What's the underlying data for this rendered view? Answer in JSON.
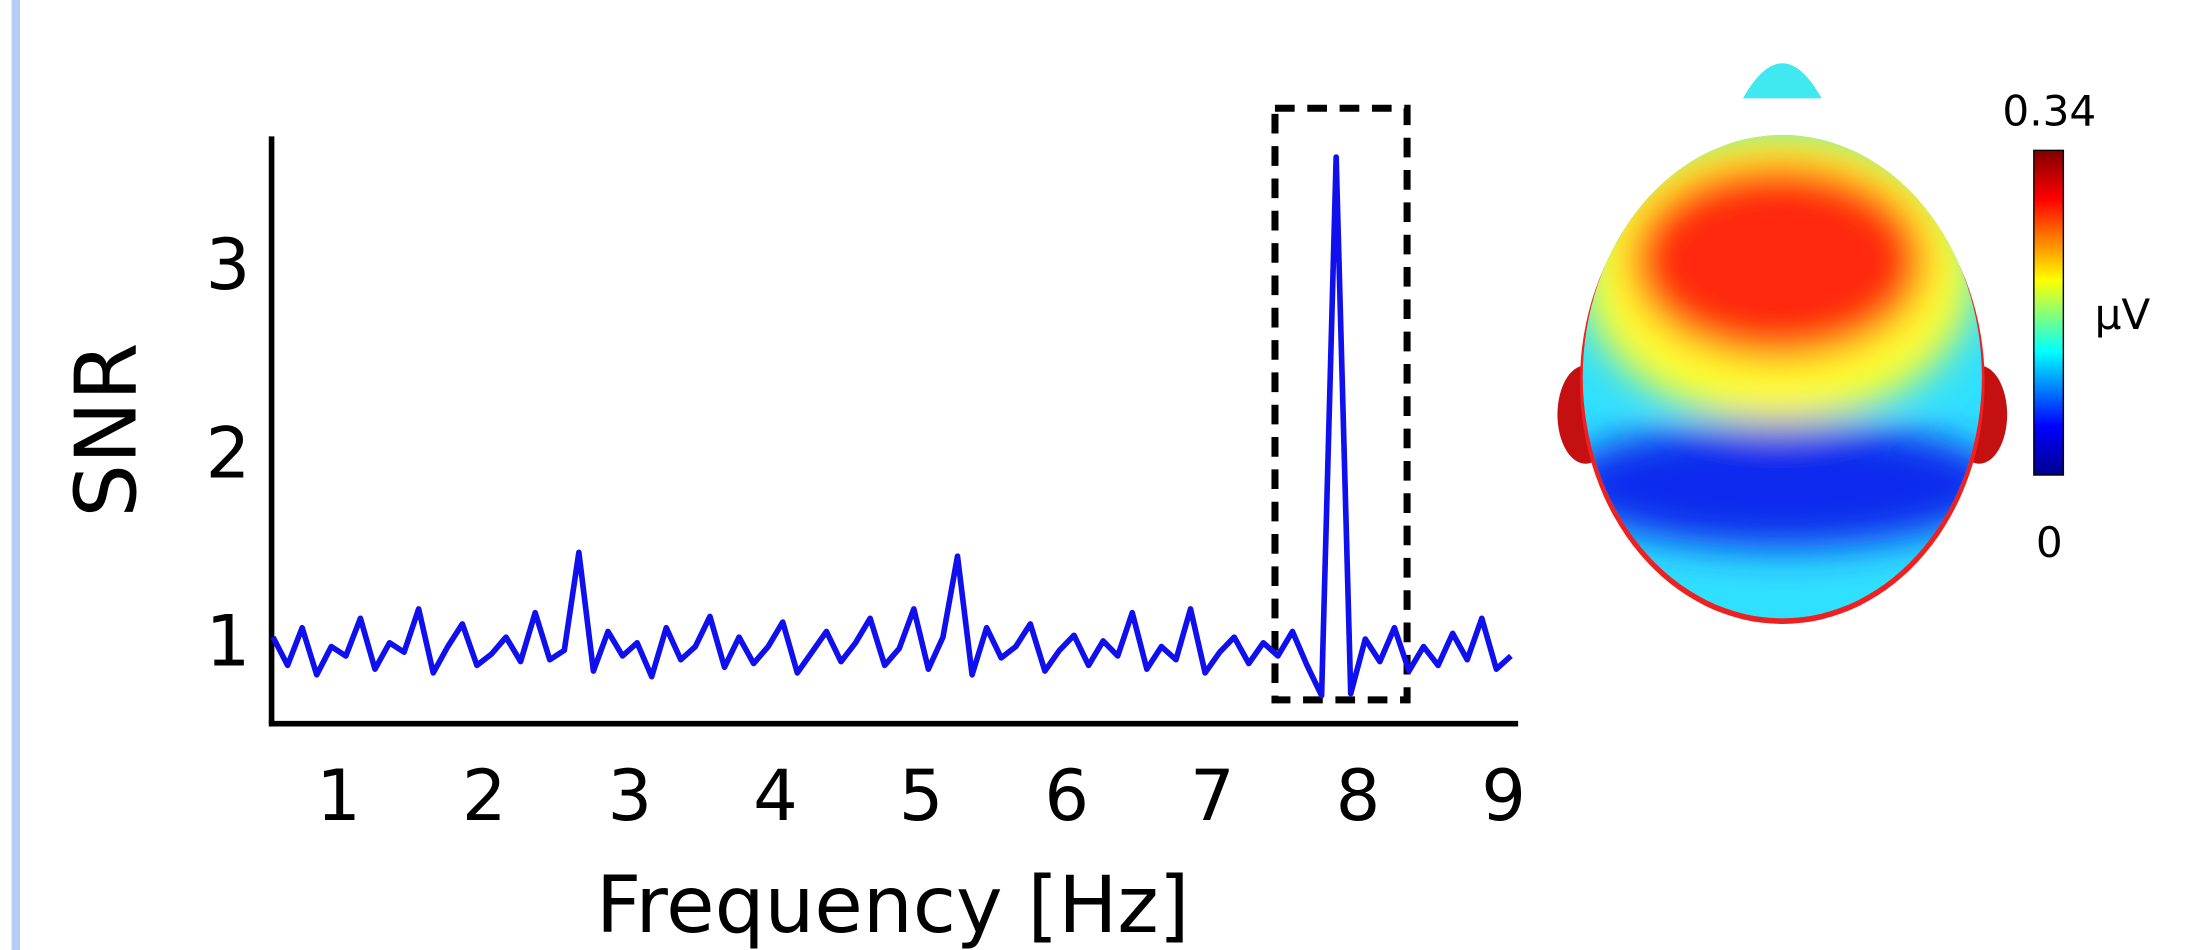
{
  "chart_data": {
    "type": "line",
    "xlabel": "Frequency [Hz]",
    "ylabel": "SNR",
    "x": [
      0.55,
      0.65,
      0.75,
      0.85,
      0.95,
      1.05,
      1.15,
      1.25,
      1.35,
      1.45,
      1.55,
      1.65,
      1.75,
      1.85,
      1.95,
      2.05,
      2.15,
      2.25,
      2.35,
      2.45,
      2.55,
      2.65,
      2.75,
      2.85,
      2.95,
      3.05,
      3.15,
      3.25,
      3.35,
      3.45,
      3.55,
      3.65,
      3.75,
      3.85,
      3.95,
      4.05,
      4.15,
      4.25,
      4.35,
      4.45,
      4.55,
      4.65,
      4.75,
      4.85,
      4.95,
      5.05,
      5.15,
      5.25,
      5.35,
      5.45,
      5.55,
      5.65,
      5.75,
      5.85,
      5.95,
      6.05,
      6.15,
      6.25,
      6.35,
      6.45,
      6.55,
      6.65,
      6.75,
      6.85,
      6.95,
      7.05,
      7.15,
      7.25,
      7.35,
      7.45,
      7.55,
      7.65,
      7.75,
      7.85,
      7.95,
      8.05,
      8.15,
      8.25,
      8.35,
      8.45,
      8.55,
      8.65,
      8.75,
      8.85,
      8.95,
      9.05
    ],
    "series": [
      {
        "color": "#1010ee",
        "values": [
          1.05,
          0.9,
          1.1,
          0.85,
          1.0,
          0.95,
          1.15,
          0.88,
          1.02,
          0.97,
          1.2,
          0.86,
          1.0,
          1.12,
          0.9,
          0.96,
          1.05,
          0.92,
          1.18,
          0.93,
          0.98,
          1.5,
          0.87,
          1.08,
          0.95,
          1.02,
          0.84,
          1.1,
          0.93,
          1.0,
          1.16,
          0.89,
          1.05,
          0.91,
          1.0,
          1.13,
          0.86,
          0.97,
          1.08,
          0.92,
          1.02,
          1.15,
          0.9,
          0.99,
          1.2,
          0.88,
          1.05,
          1.48,
          0.85,
          1.1,
          0.94,
          1.0,
          1.12,
          0.87,
          0.98,
          1.06,
          0.9,
          1.03,
          0.95,
          1.18,
          0.88,
          1.0,
          0.93,
          1.2,
          0.86,
          0.97,
          1.05,
          0.91,
          1.02,
          0.95,
          1.08,
          0.9,
          0.74,
          3.6,
          0.75,
          1.04,
          0.92,
          1.1,
          0.87,
          1.0,
          0.9,
          1.07,
          0.93,
          1.15,
          0.88,
          0.95
        ]
      }
    ],
    "xlim": [
      0.54,
      9.08
    ],
    "xticks": [
      1,
      2,
      3,
      4,
      5,
      6,
      7,
      8,
      9
    ],
    "ylim": [
      0.59,
      3.71
    ],
    "yticks": [
      1,
      2,
      3
    ],
    "colorbar": {
      "ticks": [
        0,
        0.34
      ],
      "label": "μV"
    }
  }
}
